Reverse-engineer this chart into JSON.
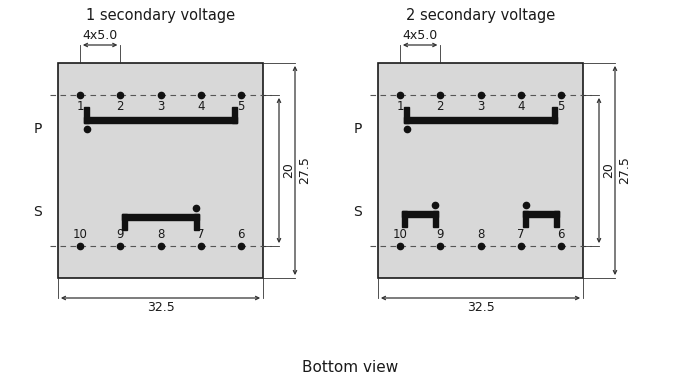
{
  "bg_color": "#ffffff",
  "box_color": "#d8d8d8",
  "box_edge_color": "#1a1a1a",
  "dash_color": "#555555",
  "pin_color": "#111111",
  "bar_color": "#111111",
  "dim_color": "#333333",
  "text_color": "#1a1a1a",
  "title1": "1 secondary voltage",
  "title2": "2 secondary voltage",
  "bottom_label": "Bottom view",
  "dim_4x50": "4x5.0",
  "dim_32_5": "32.5",
  "dim_20": "20",
  "dim_27_5": "27.5",
  "label_P": "P",
  "label_S": "S",
  "pin_labels_top": [
    "1",
    "2",
    "3",
    "4",
    "5"
  ],
  "pin_labels_bot": [
    "10",
    "9",
    "8",
    "7",
    "6"
  ],
  "font_size_title": 10.5,
  "font_size_dim": 9,
  "font_size_pin": 8.5,
  "font_size_PS": 10,
  "font_size_bottom": 11
}
